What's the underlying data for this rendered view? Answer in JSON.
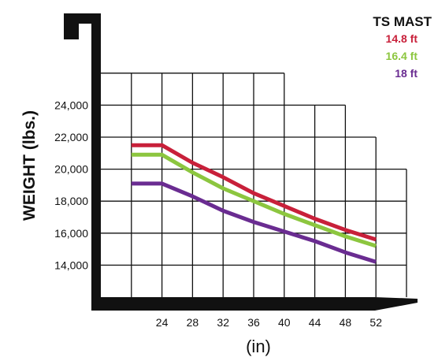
{
  "chart_data": {
    "type": "line",
    "title": "",
    "xlabel": "(in)",
    "ylabel": "WEIGHT (lbs.)",
    "x_ticks": [
      24,
      28,
      32,
      36,
      40,
      44,
      48,
      52
    ],
    "y_ticks": [
      14000,
      16000,
      18000,
      20000,
      22000,
      24000
    ],
    "y_tick_labels": [
      "14,000",
      "16,000",
      "18,000",
      "20,000",
      "22,000",
      "24,000"
    ],
    "xlim": [
      16,
      56
    ],
    "ylim": [
      12000,
      26000
    ],
    "grid": true,
    "legend": {
      "title": "TS MAST",
      "position": "top-right"
    },
    "series": [
      {
        "name": "14.8 ft",
        "color": "#c8203a",
        "x": [
          20,
          24,
          28,
          32,
          36,
          40,
          44,
          48,
          52
        ],
        "y": [
          21500,
          21500,
          20400,
          19500,
          18500,
          17700,
          16900,
          16200,
          15600
        ]
      },
      {
        "name": "16.4 ft",
        "color": "#8cc63f",
        "x": [
          20,
          24,
          28,
          32,
          36,
          40,
          44,
          48,
          52
        ],
        "y": [
          20900,
          20900,
          19800,
          18800,
          18000,
          17200,
          16500,
          15800,
          15200
        ]
      },
      {
        "name": "18 ft",
        "color": "#6a2c91",
        "x": [
          20,
          24,
          28,
          32,
          36,
          40,
          44,
          48,
          52
        ],
        "y": [
          19100,
          19100,
          18300,
          17400,
          16700,
          16100,
          15500,
          14800,
          14200
        ]
      }
    ]
  }
}
